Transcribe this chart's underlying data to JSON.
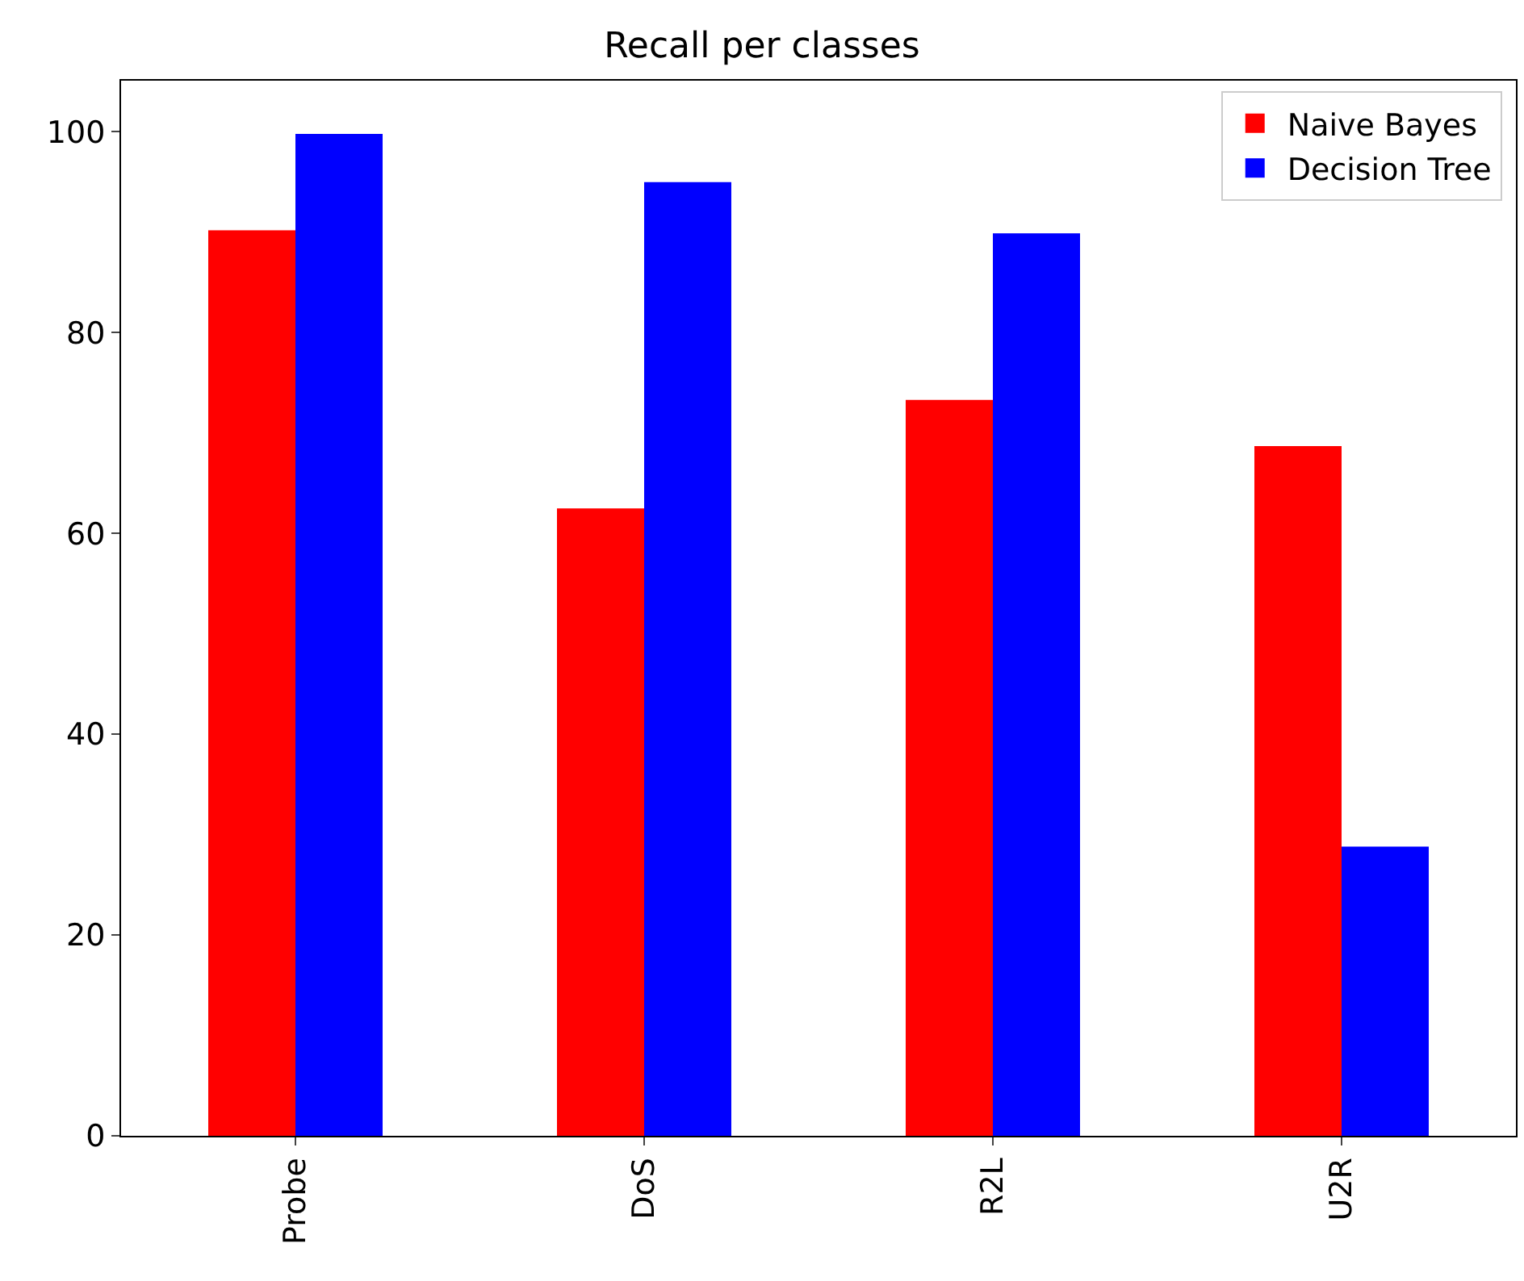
{
  "chart_data": {
    "type": "bar",
    "title": "Recall per classes",
    "categories": [
      "Probe",
      "DoS",
      "R2L",
      "U2R"
    ],
    "series": [
      {
        "name": "Naive Bayes",
        "color": "#ff0000",
        "values": [
          90.2,
          62.5,
          73.3,
          68.7
        ]
      },
      {
        "name": "Decision Tree",
        "color": "#0000ff",
        "values": [
          99.8,
          95.0,
          89.9,
          28.8
        ]
      }
    ],
    "ylim": [
      0,
      105.1
    ],
    "yticks": [
      0,
      20,
      40,
      60,
      80,
      100
    ],
    "grid": false,
    "legend": "top right"
  }
}
